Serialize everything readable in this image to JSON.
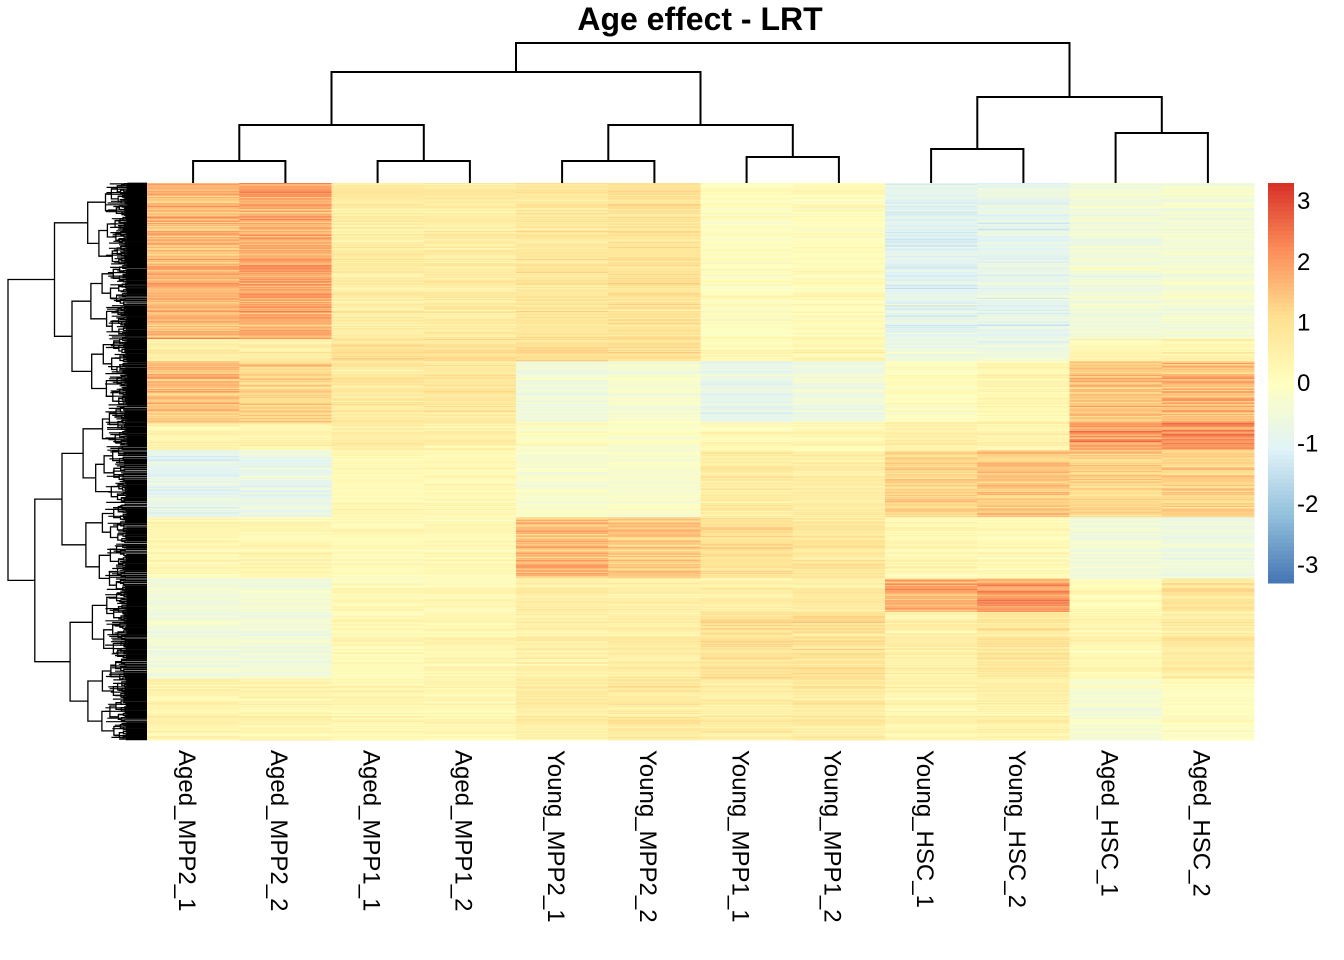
{
  "chart_data": {
    "type": "heatmap",
    "title": "Age effect - LRT",
    "columns": [
      "Aged_MPP2_1",
      "Aged_MPP2_2",
      "Aged_MPP1_1",
      "Aged_MPP1_2",
      "Young_MPP2_1",
      "Young_MPP2_2",
      "Young_MPP1_1",
      "Young_MPP1_2",
      "Young_HSC_1",
      "Young_HSC_2",
      "Aged_HSC_1",
      "Aged_HSC_2"
    ],
    "row_count_estimate": 1500,
    "color_scale": {
      "min": -3.3,
      "max": 3.3,
      "ticks": [
        3,
        2,
        1,
        0,
        -1,
        -2,
        -3
      ],
      "tick_labels": [
        "3",
        "2",
        "1",
        "0",
        "-1",
        "-2",
        "-3"
      ],
      "colors": [
        "#4575B4",
        "#91BFDB",
        "#E0F3F8",
        "#FFFFBF",
        "#FEE090",
        "#FC8D59",
        "#D73027"
      ]
    },
    "row_blocks": {
      "comment_free_fractions": true,
      "boundaries": [
        0.0,
        0.28,
        0.32,
        0.43,
        0.48,
        0.6,
        0.71,
        0.77,
        0.89,
        1.0
      ],
      "mean_z": [
        [
          1.6,
          1.8,
          0.6,
          0.6,
          0.8,
          0.9,
          0.0,
          0.1,
          -1.0,
          -0.9,
          -0.5,
          -0.4
        ],
        [
          0.6,
          0.6,
          1.0,
          1.0,
          1.1,
          1.0,
          0.2,
          0.3,
          -0.6,
          -0.7,
          0.3,
          0.4
        ],
        [
          1.5,
          1.2,
          0.7,
          0.8,
          -0.5,
          -0.3,
          -0.8,
          -0.6,
          0.0,
          0.3,
          1.5,
          1.6
        ],
        [
          0.4,
          0.4,
          0.6,
          0.5,
          0.0,
          -0.1,
          0.2,
          0.3,
          0.5,
          0.4,
          2.0,
          2.2
        ],
        [
          -0.9,
          -0.8,
          0.2,
          0.2,
          -0.3,
          -0.3,
          0.6,
          0.6,
          1.2,
          1.4,
          1.2,
          1.2
        ],
        [
          0.3,
          0.3,
          0.2,
          0.2,
          1.6,
          1.4,
          1.0,
          0.8,
          0.3,
          0.2,
          -0.5,
          -0.6
        ],
        [
          -0.5,
          -0.4,
          0.2,
          0.2,
          0.6,
          0.5,
          0.5,
          0.6,
          1.8,
          2.0,
          0.2,
          0.9
        ],
        [
          -0.5,
          -0.5,
          0.2,
          0.3,
          0.5,
          0.6,
          1.0,
          1.0,
          0.5,
          0.8,
          0.3,
          0.6
        ],
        [
          0.4,
          0.4,
          0.3,
          0.3,
          0.6,
          0.7,
          0.6,
          0.7,
          0.4,
          0.5,
          -0.3,
          0.0
        ]
      ]
    },
    "column_dendrogram": {
      "merges": [
        [
          0,
          1
        ],
        [
          2,
          3
        ],
        [
          4,
          5
        ],
        [
          6,
          7
        ],
        [
          8,
          9
        ],
        [
          10,
          11
        ],
        [
          12,
          13
        ],
        [
          14,
          15
        ],
        [
          16,
          17
        ],
        [
          18,
          19
        ],
        [
          20,
          21
        ]
      ]
    },
    "row_dendrogram": true
  }
}
